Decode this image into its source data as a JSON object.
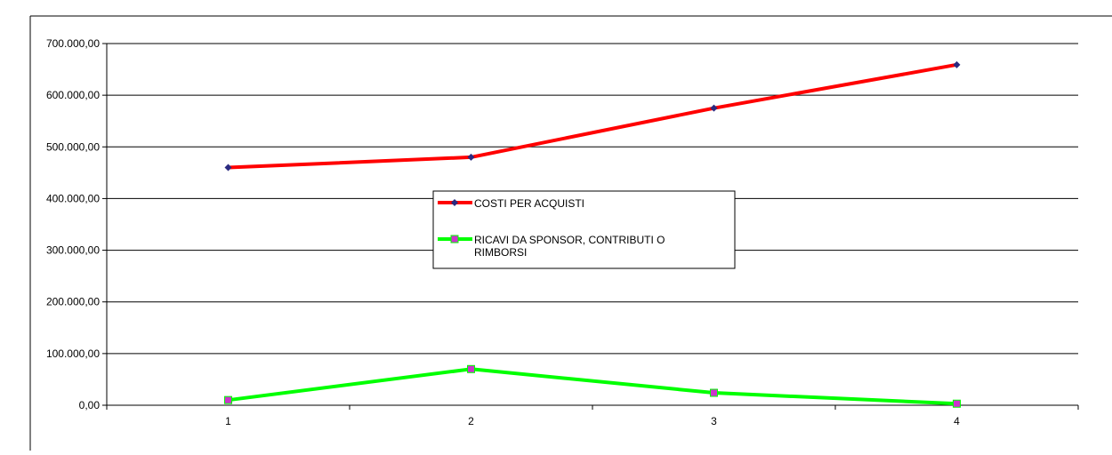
{
  "chart_data": {
    "type": "line",
    "title": "",
    "xlabel": "",
    "ylabel": "",
    "categories": [
      "1",
      "2",
      "3",
      "4"
    ],
    "ylim": [
      0,
      700000
    ],
    "yticks": [
      "0,00",
      "100.000,00",
      "200.000,00",
      "300.000,00",
      "400.000,00",
      "500.000,00",
      "600.000,00",
      "700.000,00"
    ],
    "grid": true,
    "legend_position": "center",
    "series": [
      {
        "name": "COSTI PER ACQUISTI",
        "values": [
          460000,
          480000,
          575000,
          659000
        ],
        "color": "#ff0000",
        "marker": "diamond",
        "marker_color": "#2b2a80"
      },
      {
        "name": "RICAVI  DA SPONSOR, CONTRIBUTI O RIMBORSI",
        "name_lines": [
          "RICAVI  DA SPONSOR, CONTRIBUTI O",
          "RIMBORSI"
        ],
        "values": [
          10000,
          70000,
          24000,
          3000
        ],
        "color": "#00ff00",
        "marker": "square",
        "marker_color": "#cc33cc"
      }
    ]
  }
}
